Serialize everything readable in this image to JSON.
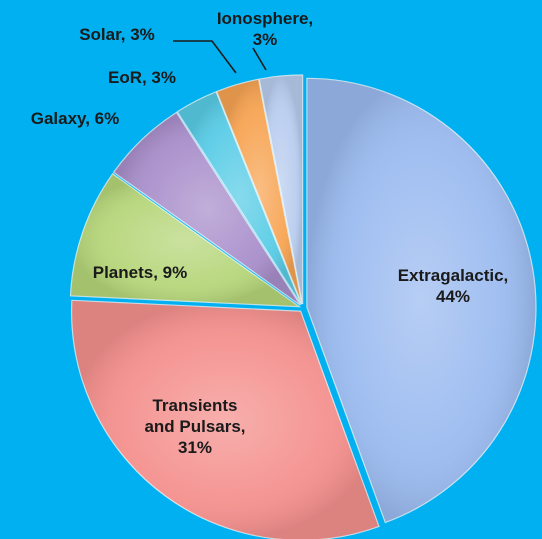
{
  "chart_data": {
    "type": "pie",
    "title": "",
    "colors": {
      "background": "#00B0F0",
      "label_text": "#1a1a1a"
    },
    "slices": [
      {
        "name": "Extragalactic",
        "label_lines": [
          "Extragalactic,",
          "44%"
        ],
        "value": 44,
        "color": "#9BBBF0"
      },
      {
        "name": "Transients and Pulsars",
        "label_lines": [
          "Transients",
          "and Pulsars,",
          "31%"
        ],
        "value": 31,
        "color": "#F4908D"
      },
      {
        "name": "Planets",
        "label_lines": [
          "Planets, 9%"
        ],
        "value": 9,
        "color": "#B6D67A"
      },
      {
        "name": "Galaxy",
        "label_lines": [
          "Galaxy, 6%"
        ],
        "value": 6,
        "color": "#A98FCB"
      },
      {
        "name": "EoR",
        "label_lines": [
          "EoR, 3%"
        ],
        "value": 3,
        "color": "#59CCE6"
      },
      {
        "name": "Solar",
        "label_lines": [
          "Solar, 3%"
        ],
        "value": 3,
        "color": "#F7A453"
      },
      {
        "name": "Ionosphere",
        "label_lines": [
          "Ionosphere,",
          "3%"
        ],
        "value": 3,
        "color": "#B9CDEF"
      }
    ]
  }
}
